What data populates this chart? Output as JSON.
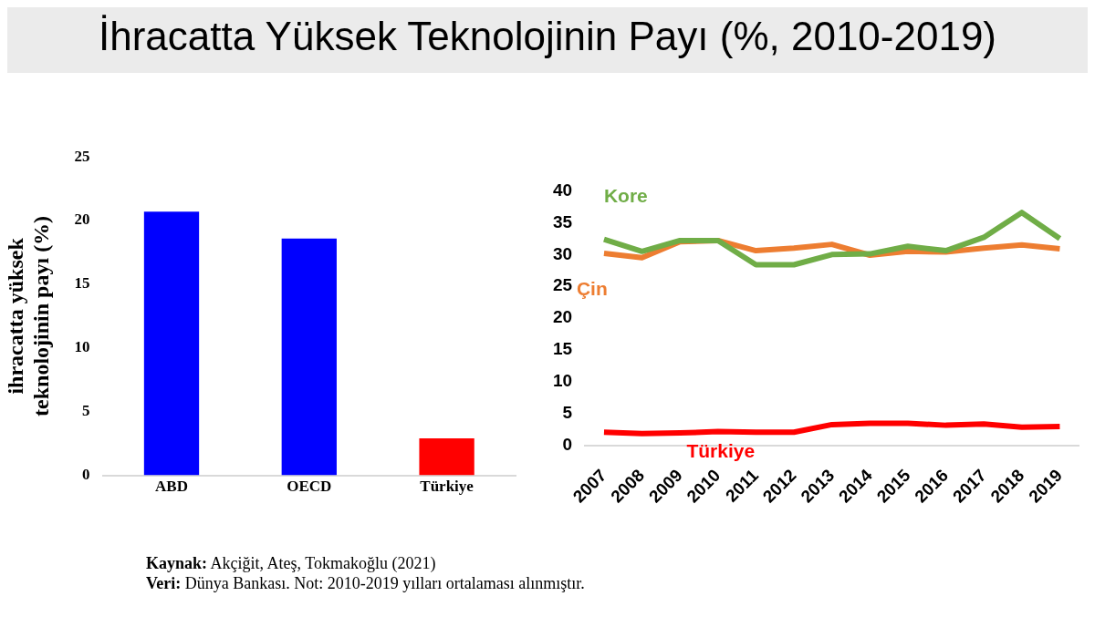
{
  "chart_data": [
    {
      "type": "bar",
      "title": "İhracatta Yüksek Teknolojinin Payı (%, 2010-2019)",
      "ylabel": "ihracatta yüksek\nteknolojinin payı (%)",
      "categories": [
        "ABD",
        "OECD",
        "Türkiye"
      ],
      "values": [
        20.7,
        18.6,
        2.9
      ],
      "colors": [
        "#0000ff",
        "#0000ff",
        "#ff0000"
      ],
      "ylim": [
        0,
        25
      ],
      "yticks": [
        0,
        5,
        10,
        15,
        20,
        25
      ],
      "grid": false,
      "legend": false,
      "annotations": [
        "Kaynak: Akçiğit, Ateş, Tokmakoğlu (2021)",
        "Veri: Dünya Bankası. Not: 2010-2019 yılları ortalaması alınmıştır."
      ]
    },
    {
      "type": "line",
      "categories": [
        "2007",
        "2008",
        "2009",
        "2010",
        "2011",
        "2012",
        "2013",
        "2014",
        "2015",
        "2016",
        "2017",
        "2018",
        "2019"
      ],
      "ylim": [
        0,
        40
      ],
      "yticks": [
        0,
        5,
        10,
        15,
        20,
        25,
        30,
        35,
        40
      ],
      "grid": false,
      "legend": false,
      "marker": "none",
      "line_style": "solid",
      "series": [
        {
          "name": "Kore",
          "color": "#70ad47",
          "values": [
            32.4,
            30.5,
            32.2,
            32.2,
            28.4,
            28.4,
            30.0,
            30.1,
            31.3,
            30.6,
            32.7,
            36.6,
            32.5
          ]
        },
        {
          "name": "Çin",
          "color": "#ed7d31",
          "values": [
            30.2,
            29.5,
            32.0,
            32.2,
            30.6,
            31.0,
            31.6,
            29.9,
            30.5,
            30.4,
            31.0,
            31.5,
            30.9
          ]
        },
        {
          "name": "Türkiye",
          "color": "#ff0000",
          "values": [
            2.1,
            1.9,
            2.0,
            2.2,
            2.1,
            2.1,
            3.3,
            3.5,
            3.5,
            3.2,
            3.4,
            2.9,
            3.0
          ]
        }
      ]
    }
  ]
}
